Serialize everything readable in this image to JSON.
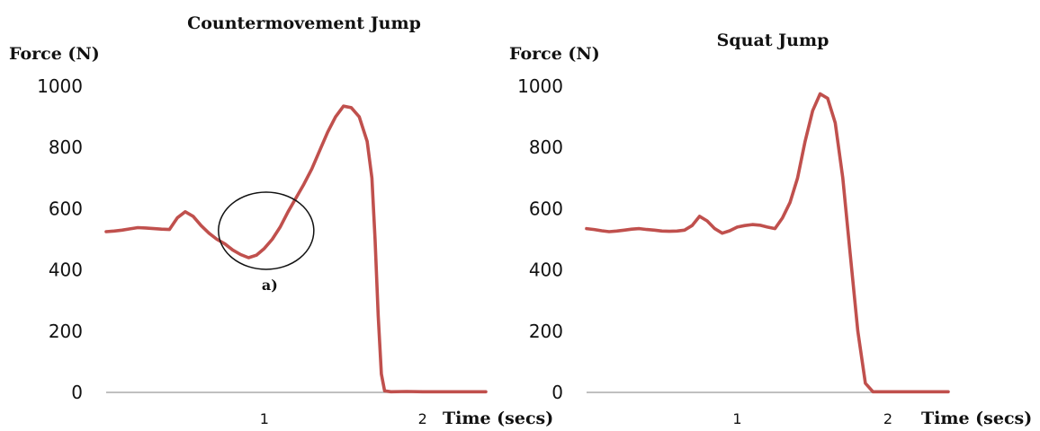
{
  "chart_data": [
    {
      "type": "line",
      "title": "Countermovement Jump",
      "ylabel": "Force (N)",
      "xlabel": "Time (secs)",
      "ylim": [
        0,
        1000
      ],
      "xlim": [
        0,
        2.4
      ],
      "yticks": [
        0,
        200,
        400,
        600,
        800,
        1000
      ],
      "xticks": [
        1,
        2
      ],
      "grid": false,
      "series": [
        {
          "color": "#c0504d",
          "x": [
            0,
            0.05,
            0.1,
            0.15,
            0.2,
            0.25,
            0.3,
            0.35,
            0.4,
            0.45,
            0.5,
            0.55,
            0.6,
            0.65,
            0.7,
            0.75,
            0.8,
            0.85,
            0.9,
            0.95,
            1.0,
            1.05,
            1.1,
            1.15,
            1.2,
            1.25,
            1.3,
            1.35,
            1.4,
            1.45,
            1.5,
            1.55,
            1.6,
            1.65,
            1.68,
            1.7,
            1.72,
            1.74,
            1.76,
            1.8,
            1.9,
            2.0,
            2.1,
            2.2,
            2.3,
            2.4
          ],
          "y": [
            525,
            527,
            530,
            534,
            538,
            537,
            535,
            533,
            532,
            570,
            590,
            575,
            545,
            520,
            500,
            485,
            465,
            450,
            440,
            448,
            470,
            500,
            540,
            590,
            635,
            680,
            730,
            790,
            850,
            900,
            935,
            930,
            900,
            820,
            700,
            500,
            250,
            60,
            5,
            2,
            3,
            2,
            2,
            2,
            2,
            2
          ]
        }
      ],
      "annotations": [
        {
          "label": "a)",
          "x": 1.0,
          "y": 440
        }
      ]
    },
    {
      "type": "line",
      "title": "Squat Jump",
      "ylabel": "Force (N)",
      "xlabel": "Time (secs)",
      "ylim": [
        0,
        1000
      ],
      "xlim": [
        0,
        2.4
      ],
      "yticks": [
        0,
        200,
        400,
        600,
        800,
        1000
      ],
      "xticks": [
        1,
        2
      ],
      "grid": false,
      "series": [
        {
          "color": "#c0504d",
          "x": [
            0,
            0.05,
            0.1,
            0.15,
            0.2,
            0.25,
            0.3,
            0.35,
            0.4,
            0.45,
            0.5,
            0.55,
            0.6,
            0.65,
            0.7,
            0.75,
            0.8,
            0.85,
            0.9,
            0.95,
            1.0,
            1.05,
            1.1,
            1.15,
            1.2,
            1.25,
            1.3,
            1.35,
            1.4,
            1.45,
            1.5,
            1.55,
            1.6,
            1.65,
            1.7,
            1.75,
            1.8,
            1.85,
            1.9,
            1.95,
            1.98,
            2.0,
            2.02,
            2.04,
            2.06,
            2.1,
            2.2,
            2.3,
            2.4
          ],
          "y": [
            535,
            532,
            528,
            525,
            527,
            530,
            533,
            535,
            532,
            530,
            527,
            526,
            527,
            530,
            545,
            575,
            560,
            535,
            520,
            528,
            540,
            545,
            548,
            546,
            540,
            535,
            570,
            620,
            700,
            820,
            920,
            975,
            960,
            880,
            700,
            450,
            200,
            30,
            2,
            2,
            2,
            2,
            2,
            2,
            2,
            2,
            2,
            2,
            2
          ]
        }
      ]
    }
  ]
}
